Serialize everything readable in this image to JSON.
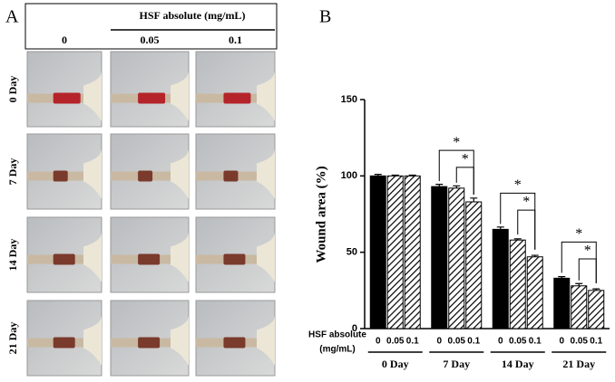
{
  "panel_a": {
    "label": "A",
    "header": "HSF absolute (mg/mL)",
    "columns": [
      "0",
      "0.05",
      "0.1"
    ],
    "rows": [
      "0 Day",
      "7 Day",
      "14 Day",
      "21 Day"
    ]
  },
  "chart_data": {
    "type": "bar",
    "label": "B",
    "ylabel": "Wound area (%)",
    "treatment_label": [
      "HSF absolute",
      "(mg/mL)"
    ],
    "categories": [
      "0 Day",
      "7 Day",
      "14 Day",
      "21 Day"
    ],
    "series": [
      {
        "name": "0",
        "color": "#000000",
        "hatch": false,
        "values": [
          100,
          93,
          65,
          33
        ],
        "errors": [
          1,
          1.5,
          1.5,
          1
        ]
      },
      {
        "name": "0.05",
        "color": "#000000",
        "hatch": true,
        "values": [
          100,
          92,
          58,
          28
        ],
        "errors": [
          0.5,
          1.5,
          0.8,
          1.5
        ]
      },
      {
        "name": "0.1",
        "color": "#000000",
        "hatch": true,
        "values": [
          100,
          83,
          47,
          25
        ],
        "errors": [
          0.5,
          2.5,
          1,
          1
        ]
      }
    ],
    "significance": [
      {
        "category": 1,
        "from": 0,
        "to": 2,
        "label": "*"
      },
      {
        "category": 1,
        "from": 1,
        "to": 2,
        "label": "*"
      },
      {
        "category": 2,
        "from": 0,
        "to": 2,
        "label": "*"
      },
      {
        "category": 2,
        "from": 1,
        "to": 2,
        "label": "*"
      },
      {
        "category": 3,
        "from": 0,
        "to": 2,
        "label": "*"
      },
      {
        "category": 3,
        "from": 1,
        "to": 2,
        "label": "*"
      }
    ],
    "ylim": [
      0,
      150
    ],
    "yticks": [
      0,
      50,
      100,
      150
    ]
  }
}
